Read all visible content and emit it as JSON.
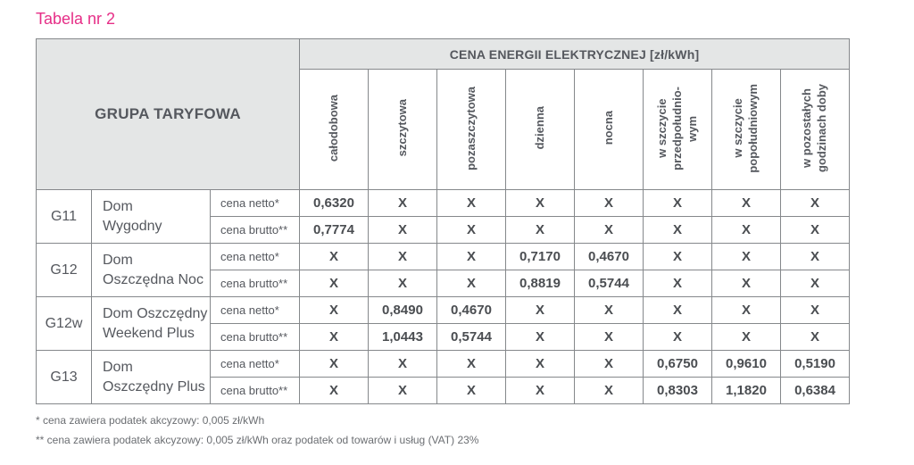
{
  "title": "Tabela nr 2",
  "colors": {
    "accent_pink": "#e62e87",
    "header_bg": "#e4e6e6",
    "border": "#85888b",
    "text": "#55585e"
  },
  "table": {
    "corner_header": "GRUPA TARYFOWA",
    "main_header": "CENA ENERGII ELEKTRYCZNEJ [zł/kWh]",
    "columns": [
      "całodobowa",
      "szczytowa",
      "pozaszczytowa",
      "dzienna",
      "nocna",
      "w szczycie\nprzedpołudnio-\nwym",
      "w szczycie\npopołudniowym",
      "w pozostałych\ngodzinach doby"
    ],
    "groups": [
      {
        "code": "G11",
        "name": "Dom\nWygodny",
        "rows": [
          {
            "price_type": "cena netto*",
            "values": [
              "0,6320",
              "X",
              "X",
              "X",
              "X",
              "X",
              "X",
              "X"
            ]
          },
          {
            "price_type": "cena brutto**",
            "values": [
              "0,7774",
              "X",
              "X",
              "X",
              "X",
              "X",
              "X",
              "X"
            ]
          }
        ]
      },
      {
        "code": "G12",
        "name": "Dom\nOszczędna Noc",
        "rows": [
          {
            "price_type": "cena netto*",
            "values": [
              "X",
              "X",
              "X",
              "0,7170",
              "0,4670",
              "X",
              "X",
              "X"
            ]
          },
          {
            "price_type": "cena brutto**",
            "values": [
              "X",
              "X",
              "X",
              "0,8819",
              "0,5744",
              "X",
              "X",
              "X"
            ]
          }
        ]
      },
      {
        "code": "G12w",
        "name": "Dom Oszczędny\nWeekend Plus",
        "rows": [
          {
            "price_type": "cena netto*",
            "values": [
              "X",
              "0,8490",
              "0,4670",
              "X",
              "X",
              "X",
              "X",
              "X"
            ]
          },
          {
            "price_type": "cena brutto**",
            "values": [
              "X",
              "1,0443",
              "0,5744",
              "X",
              "X",
              "X",
              "X",
              "X"
            ]
          }
        ]
      },
      {
        "code": "G13",
        "name": "Dom\nOszczędny Plus",
        "rows": [
          {
            "price_type": "cena netto*",
            "values": [
              "X",
              "X",
              "X",
              "X",
              "X",
              "0,6750",
              "0,9610",
              "0,5190"
            ]
          },
          {
            "price_type": "cena brutto**",
            "values": [
              "X",
              "X",
              "X",
              "X",
              "X",
              "0,8303",
              "1,1820",
              "0,6384"
            ]
          }
        ]
      }
    ]
  },
  "footnotes": [
    "* cena zawiera podatek akcyzowy: 0,005 zł/kWh",
    "** cena zawiera podatek akcyzowy: 0,005 zł/kWh oraz podatek od towarów i usług (VAT) 23%"
  ]
}
